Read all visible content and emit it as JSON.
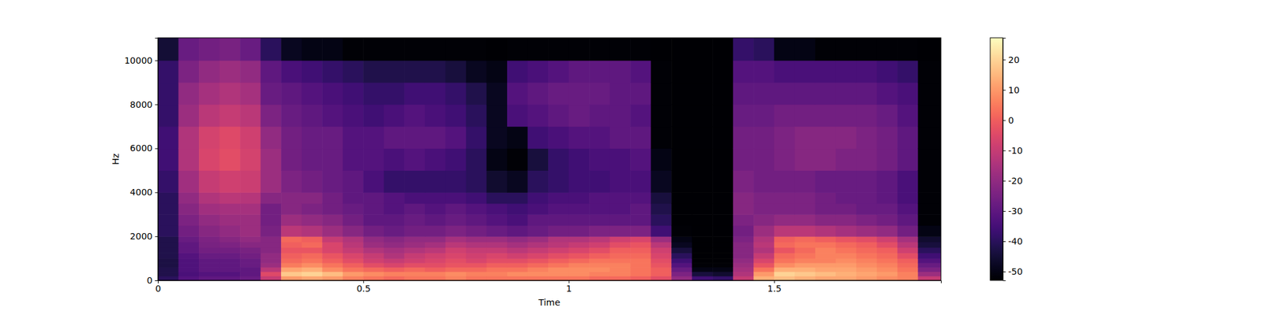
{
  "chart_data": {
    "type": "heatmap",
    "x_label": "Time",
    "y_label": "Hz",
    "x": [
      0,
      0.05,
      0.1,
      0.15,
      0.2,
      0.25,
      0.3,
      0.35,
      0.4,
      0.45,
      0.5,
      0.55,
      0.6,
      0.65,
      0.7,
      0.75,
      0.8,
      0.85,
      0.9,
      0.95,
      1.0,
      1.05,
      1.1,
      1.15,
      1.2,
      1.25,
      1.3,
      1.35,
      1.4,
      1.45,
      1.5,
      1.55,
      1.6,
      1.65,
      1.7,
      1.75,
      1.8,
      1.85,
      1.906
    ],
    "y": [
      0,
      200,
      400,
      600,
      800,
      1000,
      1250,
      1500,
      1750,
      2000,
      2500,
      3000,
      3500,
      4000,
      5000,
      6000,
      7000,
      8000,
      9000,
      10000,
      11025
    ],
    "z": [
      [
        -40,
        -42,
        -42,
        -43,
        -43,
        -42,
        -42,
        -42,
        -42,
        -40,
        -40,
        -40,
        -40,
        -38,
        -36,
        -36,
        -38,
        -38,
        -38,
        -45
      ],
      [
        -32,
        -34,
        -33,
        -33,
        -33,
        -32,
        -30,
        -30,
        -28,
        -26,
        -24,
        -22,
        -20,
        -17,
        -14,
        -14,
        -18,
        -20,
        -24,
        -28
      ],
      [
        -30,
        -32,
        -30,
        -30,
        -30,
        -28,
        -26,
        -25,
        -24,
        -22,
        -20,
        -17,
        -14,
        -10,
        -6,
        -7,
        -12,
        -16,
        -20,
        -26
      ],
      [
        -30,
        -32,
        -30,
        -30,
        -30,
        -28,
        -26,
        -24,
        -22,
        -20,
        -18,
        -16,
        -12,
        -8,
        -4,
        -5,
        -10,
        -14,
        -18,
        -25
      ],
      [
        -28,
        -30,
        -30,
        -28,
        -28,
        -26,
        -25,
        -22,
        -20,
        -18,
        -18,
        -16,
        -13,
        -9,
        -7,
        -8,
        -12,
        -16,
        -20,
        -28
      ],
      [
        -10,
        -5,
        -12,
        -18,
        -20,
        -20,
        -22,
        -22,
        -22,
        -25,
        -26,
        -26,
        -22,
        -18,
        -18,
        -20,
        -24,
        -28,
        -30,
        -40
      ],
      [
        10,
        18,
        12,
        5,
        2,
        0,
        -2,
        0,
        2,
        -12,
        -18,
        -22,
        -22,
        -24,
        -26,
        -26,
        -28,
        -30,
        -34,
        -48
      ],
      [
        12,
        20,
        14,
        8,
        4,
        2,
        -2,
        2,
        0,
        -14,
        -20,
        -24,
        -22,
        -26,
        -28,
        -28,
        -30,
        -32,
        -36,
        -50
      ],
      [
        10,
        16,
        8,
        4,
        0,
        -2,
        -6,
        -6,
        -10,
        -18,
        -22,
        -26,
        -26,
        -28,
        -28,
        -28,
        -32,
        -34,
        -38,
        -50
      ],
      [
        6,
        10,
        4,
        0,
        -4,
        -6,
        -10,
        -12,
        -14,
        -22,
        -26,
        -28,
        -30,
        -30,
        -32,
        -32,
        -34,
        -36,
        -40,
        -52
      ],
      [
        4,
        8,
        2,
        -4,
        -8,
        -10,
        -14,
        -18,
        -20,
        -26,
        -30,
        -30,
        -30,
        -34,
        -32,
        -32,
        -36,
        -38,
        -42,
        -52
      ],
      [
        2,
        6,
        0,
        -6,
        -10,
        -14,
        -16,
        -20,
        -22,
        -28,
        -30,
        -32,
        -32,
        -38,
        -34,
        -30,
        -34,
        -38,
        -42,
        -52
      ],
      [
        4,
        6,
        2,
        -4,
        -8,
        -10,
        -14,
        -18,
        -20,
        -26,
        -28,
        -30,
        -34,
        -38,
        -32,
        -30,
        -32,
        -36,
        -42,
        -52
      ],
      [
        4,
        6,
        0,
        -4,
        -6,
        -8,
        -12,
        -16,
        -20,
        -26,
        -30,
        -32,
        -34,
        -38,
        -34,
        -30,
        -34,
        -36,
        -42,
        -52
      ],
      [
        6,
        8,
        2,
        -2,
        -4,
        -6,
        -8,
        -12,
        -16,
        -24,
        -28,
        -30,
        -34,
        -38,
        -36,
        -32,
        -36,
        -38,
        -44,
        -52
      ],
      [
        4,
        6,
        2,
        -2,
        -6,
        -8,
        -10,
        -14,
        -18,
        -26,
        -30,
        -32,
        -36,
        -40,
        -40,
        -38,
        -40,
        -42,
        -48,
        -52
      ],
      [
        4,
        6,
        4,
        0,
        -4,
        -6,
        -10,
        -14,
        -18,
        -28,
        -32,
        -34,
        -40,
        -46,
        -50,
        -48,
        -48,
        -48,
        -50,
        -53
      ],
      [
        4,
        8,
        4,
        0,
        -4,
        -8,
        -12,
        -16,
        -20,
        -30,
        -34,
        -36,
        -40,
        -48,
        -52,
        -50,
        -34,
        -32,
        -36,
        -52
      ],
      [
        4,
        8,
        6,
        2,
        -2,
        -6,
        -10,
        -14,
        -18,
        -28,
        -30,
        -34,
        -36,
        -40,
        -44,
        -36,
        -32,
        -30,
        -34,
        -52
      ],
      [
        4,
        8,
        8,
        4,
        0,
        -4,
        -8,
        -12,
        -14,
        -26,
        -30,
        -32,
        -34,
        -38,
        -38,
        -34,
        -30,
        -28,
        -32,
        -52
      ],
      [
        4,
        8,
        8,
        6,
        2,
        -2,
        -6,
        -10,
        -14,
        -26,
        -30,
        -32,
        -34,
        -36,
        -36,
        -32,
        -28,
        -28,
        -30,
        -52
      ],
      [
        2,
        6,
        8,
        6,
        4,
        0,
        -4,
        -8,
        -12,
        -24,
        -30,
        -32,
        -32,
        -36,
        -34,
        -32,
        -30,
        -28,
        -30,
        -52
      ],
      [
        2,
        6,
        6,
        6,
        4,
        2,
        0,
        -4,
        -8,
        -24,
        -30,
        -32,
        -32,
        -34,
        -34,
        -30,
        -30,
        -30,
        -30,
        -52
      ],
      [
        0,
        4,
        4,
        4,
        4,
        2,
        0,
        -2,
        -6,
        -24,
        -30,
        -30,
        -32,
        -34,
        -32,
        -30,
        -32,
        -30,
        -32,
        -52
      ],
      [
        -4,
        0,
        0,
        -2,
        -4,
        -6,
        -8,
        -12,
        -18,
        -36,
        -40,
        -42,
        -44,
        -48,
        -50,
        -52,
        -52,
        -52,
        -52,
        -53
      ],
      [
        -20,
        -24,
        -28,
        -32,
        -36,
        -40,
        -44,
        -48,
        -50,
        -52,
        -53,
        -53,
        -53,
        -53,
        -53,
        -53,
        -53,
        -53,
        -53,
        -53
      ],
      [
        -36,
        -44,
        -50,
        -52,
        -53,
        -53,
        -53,
        -53,
        -53,
        -53,
        -53,
        -53,
        -53,
        -53,
        -53,
        -53,
        -53,
        -53,
        -53,
        -53
      ],
      [
        -38,
        -46,
        -50,
        -52,
        -53,
        -53,
        -53,
        -53,
        -53,
        -53,
        -53,
        -53,
        -53,
        -53,
        -53,
        -53,
        -53,
        -53,
        -53,
        -53
      ],
      [
        -10,
        -14,
        -16,
        -18,
        -20,
        -22,
        -22,
        -22,
        -24,
        -26,
        -24,
        -22,
        -22,
        -24,
        -26,
        -26,
        -28,
        -30,
        -32,
        -38
      ],
      [
        14,
        10,
        4,
        -2,
        -6,
        -10,
        -14,
        -12,
        -14,
        -18,
        -22,
        -24,
        -24,
        -26,
        -26,
        -26,
        -28,
        -30,
        -32,
        -40
      ],
      [
        16,
        20,
        14,
        8,
        4,
        2,
        -2,
        2,
        0,
        -12,
        -20,
        -24,
        -24,
        -26,
        -24,
        -24,
        -26,
        -30,
        -34,
        -50
      ],
      [
        14,
        18,
        14,
        10,
        6,
        4,
        2,
        4,
        2,
        -12,
        -20,
        -24,
        -24,
        -26,
        -22,
        -22,
        -26,
        -30,
        -34,
        -50
      ],
      [
        12,
        16,
        12,
        10,
        6,
        6,
        6,
        4,
        0,
        -14,
        -22,
        -26,
        -26,
        -28,
        -22,
        -22,
        -26,
        -30,
        -34,
        -52
      ],
      [
        12,
        14,
        12,
        10,
        8,
        6,
        4,
        2,
        -2,
        -16,
        -22,
        -26,
        -28,
        -28,
        -24,
        -22,
        -26,
        -30,
        -34,
        -52
      ],
      [
        10,
        12,
        10,
        8,
        6,
        4,
        2,
        0,
        -4,
        -18,
        -24,
        -28,
        -28,
        -28,
        -24,
        -24,
        -26,
        -30,
        -34,
        -52
      ],
      [
        8,
        10,
        8,
        6,
        4,
        2,
        0,
        -4,
        -8,
        -20,
        -26,
        -28,
        -30,
        -30,
        -26,
        -26,
        -28,
        -32,
        -36,
        -52
      ],
      [
        6,
        6,
        4,
        2,
        0,
        -4,
        -8,
        -12,
        -16,
        -26,
        -30,
        -32,
        -34,
        -34,
        -30,
        -30,
        -32,
        -34,
        -38,
        -52
      ],
      [
        -10,
        -18,
        -24,
        -28,
        -32,
        -36,
        -40,
        -44,
        -46,
        -50,
        -52,
        -52,
        -52,
        -52,
        -52,
        -52,
        -52,
        -52,
        -52,
        -53
      ]
    ],
    "xlim": [
      0,
      1.906
    ],
    "ylim": [
      0,
      11025
    ],
    "xticks": [
      0,
      0.5,
      1,
      1.5
    ],
    "yticks": [
      0,
      2000,
      4000,
      6000,
      8000,
      10000
    ],
    "colorbar": {
      "range": [
        -52.9,
        27.2
      ],
      "ticks": [
        -50,
        -40,
        -30,
        -20,
        -10,
        0,
        10,
        20
      ]
    }
  }
}
